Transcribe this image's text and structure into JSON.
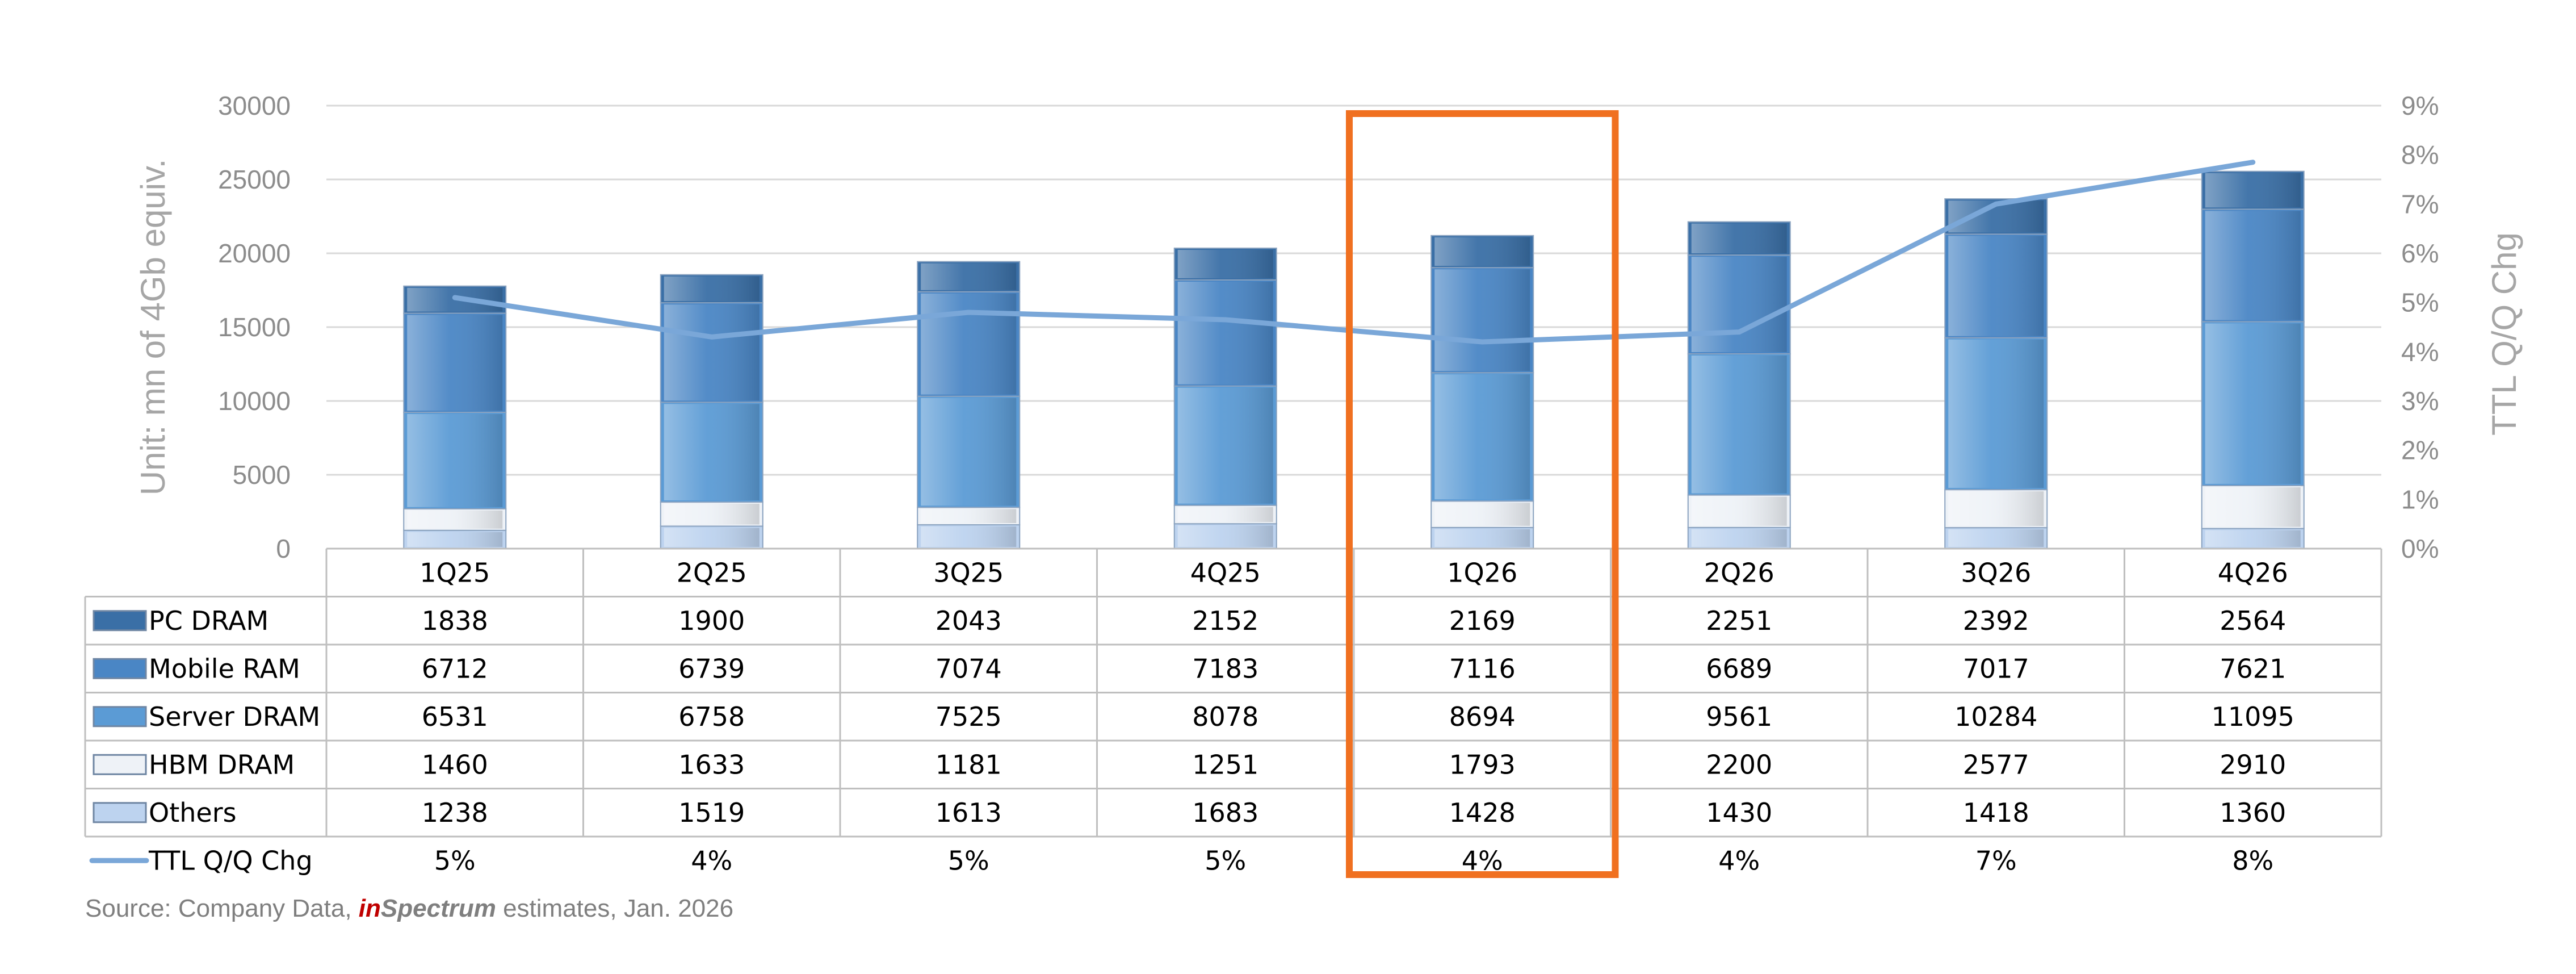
{
  "chart_data": {
    "type": "bar",
    "stacked": true,
    "categories": [
      "1Q25",
      "2Q25",
      "3Q25",
      "4Q25",
      "1Q26",
      "2Q26",
      "3Q26",
      "4Q26"
    ],
    "series": [
      {
        "name": "Others",
        "values": [
          1238,
          1519,
          1613,
          1683,
          1428,
          1430,
          1418,
          1360
        ],
        "color": "#bdd3ef"
      },
      {
        "name": "HBM DRAM",
        "values": [
          1460,
          1633,
          1181,
          1251,
          1793,
          2200,
          2577,
          2910
        ],
        "color": "#eef2f7"
      },
      {
        "name": "Server DRAM",
        "values": [
          6531,
          6758,
          7525,
          8078,
          8694,
          9561,
          10284,
          11095
        ],
        "color": "#5b9bd5"
      },
      {
        "name": "Mobile RAM",
        "values": [
          6712,
          6739,
          7074,
          7183,
          7116,
          6689,
          7017,
          7621
        ],
        "color": "#4a86c5"
      },
      {
        "name": "PC DRAM",
        "values": [
          1838,
          1900,
          2043,
          2152,
          2169,
          2251,
          2392,
          2564
        ],
        "color": "#3a6fa6"
      }
    ],
    "line_series": {
      "name": "TTL Q/Q Chg",
      "values": [
        5.1,
        4.3,
        4.8,
        4.65,
        4.2,
        4.4,
        7.0,
        7.85
      ],
      "labels": [
        "5%",
        "4%",
        "5%",
        "5%",
        "4%",
        "4%",
        "7%",
        "8%"
      ],
      "color": "#7aa7d8",
      "axis": "right"
    },
    "table_row_order": [
      "PC DRAM",
      "Mobile RAM",
      "Server DRAM",
      "HBM DRAM",
      "Others"
    ],
    "ylabel": "Unit: mn of 4Gb equiv.",
    "y2label": "TTL Q/Q Chg",
    "ylim": [
      0,
      30000
    ],
    "y_ticks": [
      "0",
      "5000",
      "10000",
      "15000",
      "20000",
      "25000",
      "30000"
    ],
    "y2lim": [
      0,
      9
    ],
    "y2_ticks": [
      "0%",
      "1%",
      "2%",
      "3%",
      "4%",
      "5%",
      "6%",
      "7%",
      "8%",
      "9%"
    ],
    "grid": true,
    "legend": "data-table",
    "highlight_category": "1Q26",
    "highlight_color": "#f07020"
  },
  "source": {
    "prefix": "Source: Company Data, ",
    "brand_in": "in",
    "brand_rest": "Spectrum",
    "suffix": " estimates, Jan. 2026"
  }
}
